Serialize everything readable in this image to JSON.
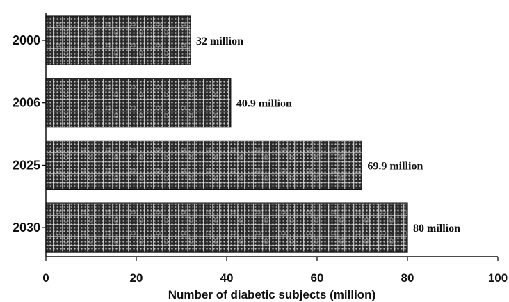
{
  "chart_data": {
    "type": "bar",
    "orientation": "horizontal",
    "categories": [
      "2000",
      "2006",
      "2025",
      "2030"
    ],
    "values": [
      32,
      40.9,
      69.9,
      80
    ],
    "data_labels": [
      "32 million",
      "40.9 million",
      "69.9 million",
      "80 million"
    ],
    "xlabel": "Number of diabetic subjects (million)",
    "ylabel": "",
    "xlim": [
      0,
      100
    ],
    "xticks": [
      0,
      20,
      40,
      60,
      80,
      100
    ],
    "grid": false,
    "bar_fill_colors": {
      "base": "#2a2a2a",
      "dots": "#bcbcbc",
      "lines": "#e8e8e8"
    }
  }
}
